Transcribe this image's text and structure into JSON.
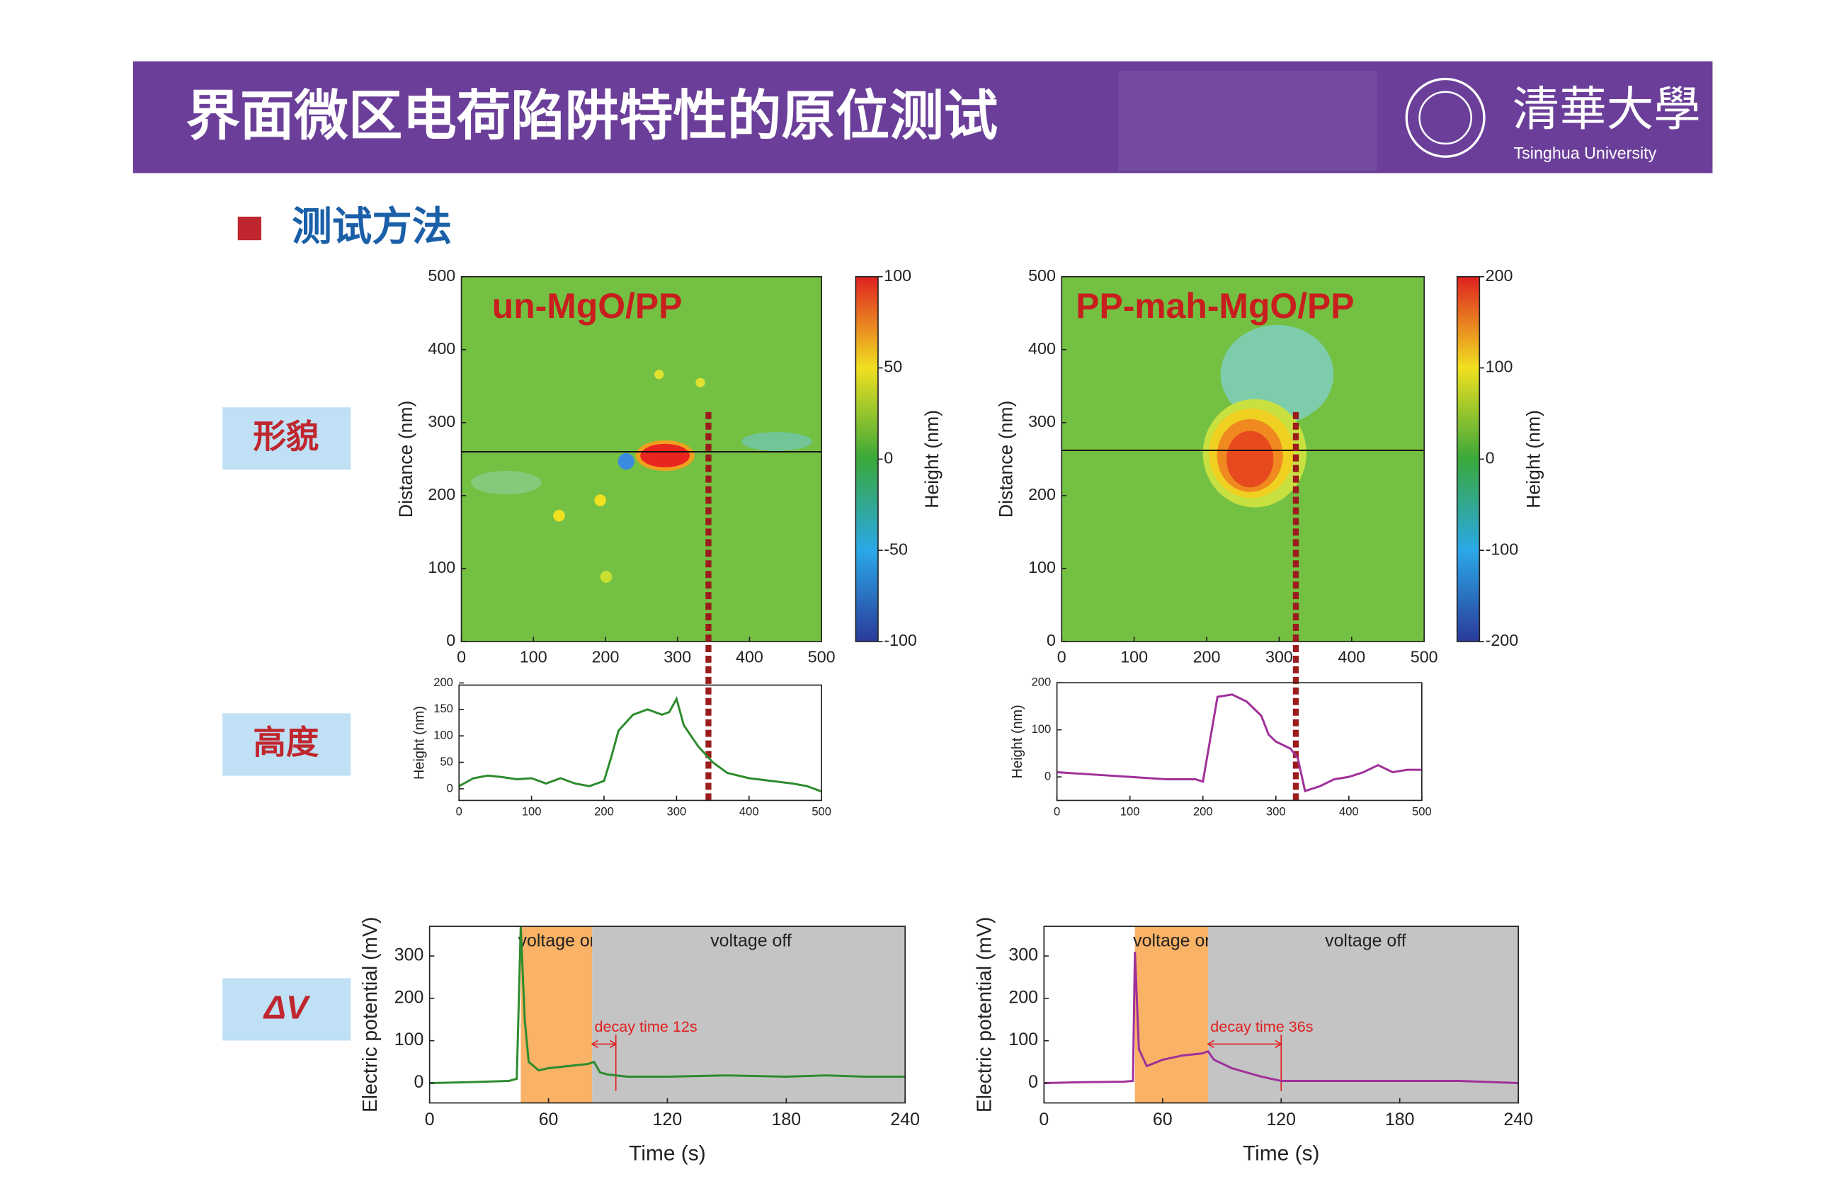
{
  "header": {
    "title": "界面微区电荷陷阱特性的原位测试",
    "logo": "清華大學",
    "logo_sub": "Tsinghua University"
  },
  "section": "测试方法",
  "row_labels": [
    "形貌",
    "高度",
    "ΔV"
  ],
  "chart_data": [
    {
      "type": "heatmap",
      "title": "un-MgO/PP",
      "ylabel": "Distance (nm)",
      "xlim": [
        0,
        500
      ],
      "ylim": [
        0,
        500
      ],
      "xticks": [
        0,
        100,
        200,
        300,
        400,
        500
      ],
      "yticks": [
        0,
        100,
        200,
        300,
        400,
        500
      ],
      "scan_y": 260,
      "cut_x": 343,
      "cut_color": "#9b1c1c",
      "colorbar": {
        "label": "Height (nm)",
        "lim": [
          -100,
          100
        ],
        "ticks": [
          -100,
          -50,
          0,
          50,
          100
        ]
      }
    },
    {
      "type": "heatmap",
      "title": "PP-mah-MgO/PP",
      "ylabel": "Distance (nm)",
      "xlim": [
        0,
        500
      ],
      "ylim": [
        0,
        500
      ],
      "xticks": [
        0,
        100,
        200,
        300,
        400,
        500
      ],
      "yticks": [
        0,
        100,
        200,
        300,
        400,
        500
      ],
      "scan_y": 262,
      "cut_x": 323,
      "cut_color": "#9b1c1c",
      "colorbar": {
        "label": "Height (nm)",
        "lim": [
          -200,
          200
        ],
        "ticks": [
          -200,
          -100,
          0,
          100,
          200
        ]
      }
    },
    {
      "type": "line",
      "ylabel": "Height (nm)",
      "color": "#2e8b2e",
      "xlim": [
        0,
        500
      ],
      "ylim": [
        -22,
        196
      ],
      "xticks": [
        0,
        100,
        200,
        300,
        400,
        500
      ],
      "yticks": [
        0,
        50,
        100,
        150,
        200
      ],
      "x": [
        0,
        20,
        40,
        60,
        80,
        100,
        120,
        140,
        160,
        180,
        200,
        210,
        220,
        240,
        260,
        280,
        290,
        300,
        310,
        330,
        350,
        370,
        400,
        430,
        460,
        480,
        500
      ],
      "values": [
        5,
        20,
        25,
        22,
        18,
        20,
        10,
        20,
        10,
        5,
        15,
        60,
        110,
        140,
        150,
        140,
        145,
        170,
        120,
        80,
        50,
        30,
        20,
        15,
        10,
        5,
        -5
      ]
    },
    {
      "type": "line",
      "ylabel": "Height (nm)",
      "color": "#a0309a",
      "xlim": [
        0,
        500
      ],
      "ylim": [
        -50,
        200
      ],
      "xticks": [
        0,
        100,
        200,
        300,
        400,
        500
      ],
      "yticks": [
        0,
        100,
        200
      ],
      "x": [
        0,
        50,
        100,
        150,
        190,
        200,
        210,
        220,
        240,
        260,
        280,
        290,
        300,
        320,
        330,
        340,
        360,
        380,
        400,
        420,
        440,
        460,
        480,
        500
      ],
      "values": [
        10,
        5,
        0,
        -5,
        -5,
        -10,
        80,
        170,
        175,
        160,
        130,
        90,
        75,
        60,
        40,
        -30,
        -20,
        -5,
        0,
        10,
        25,
        10,
        15,
        15
      ]
    },
    {
      "type": "line",
      "xlabel": "Time (s)",
      "ylabel": "Electric potential (mV)",
      "color": "#2e8b2e",
      "xlim": [
        0,
        240
      ],
      "ylim": [
        -47,
        370
      ],
      "xticks": [
        0,
        60,
        120,
        180,
        240
      ],
      "yticks": [
        0,
        100,
        200,
        300
      ],
      "regions": [
        {
          "label": "voltage on",
          "start": 46,
          "end": 82,
          "color": "#f9b266"
        },
        {
          "label": "voltage off",
          "start": 82,
          "end": 240,
          "color": "#c4c4c4"
        }
      ],
      "decay": {
        "label": "decay time 12s",
        "start": 82,
        "end": 94,
        "color": "#e02020"
      },
      "x": [
        0,
        20,
        40,
        44,
        46,
        48,
        50,
        55,
        60,
        70,
        80,
        83,
        86,
        90,
        100,
        120,
        150,
        180,
        200,
        220,
        240
      ],
      "values": [
        0,
        2,
        5,
        10,
        370,
        150,
        50,
        30,
        35,
        40,
        45,
        50,
        25,
        20,
        15,
        15,
        18,
        15,
        18,
        15,
        15
      ]
    },
    {
      "type": "line",
      "xlabel": "Time (s)",
      "ylabel": "Electric potential (mV)",
      "color": "#a0309a",
      "xlim": [
        0,
        240
      ],
      "ylim": [
        -47,
        370
      ],
      "xticks": [
        0,
        60,
        120,
        180,
        240
      ],
      "yticks": [
        0,
        100,
        200,
        300
      ],
      "regions": [
        {
          "label": "voltage on",
          "start": 46,
          "end": 83,
          "color": "#f9b266"
        },
        {
          "label": "voltage off",
          "start": 83,
          "end": 240,
          "color": "#c4c4c4"
        }
      ],
      "decay": {
        "label": "decay time 36s",
        "start": 83,
        "end": 120,
        "color": "#e02020"
      },
      "x": [
        0,
        20,
        40,
        45,
        46,
        48,
        52,
        60,
        70,
        80,
        83,
        86,
        95,
        110,
        120,
        150,
        180,
        210,
        240
      ],
      "values": [
        0,
        2,
        3,
        5,
        310,
        80,
        40,
        55,
        65,
        70,
        75,
        55,
        35,
        15,
        5,
        5,
        5,
        5,
        0
      ]
    }
  ]
}
